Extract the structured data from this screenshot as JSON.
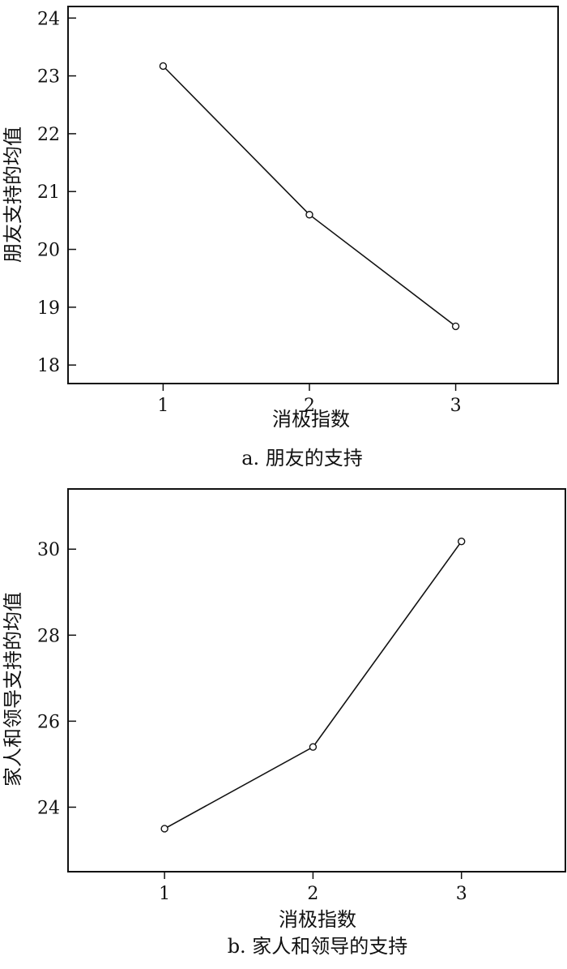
{
  "chart_data": [
    {
      "type": "line",
      "x": [
        1,
        2,
        3
      ],
      "series": [
        {
          "values": [
            23.17,
            20.6,
            18.67
          ]
        }
      ],
      "xlabel": "消极指数",
      "ylabel": "朋友支持的均值",
      "caption": "a. 朋友的支持",
      "xticks": [
        "1",
        "2",
        "3"
      ],
      "yticks": [
        "18",
        "19",
        "20",
        "21",
        "22",
        "23",
        "24"
      ],
      "xlim": [
        0.35,
        3.7
      ],
      "ylim": [
        17.68,
        24.2
      ],
      "grid": false
    },
    {
      "type": "line",
      "x": [
        1,
        2,
        3
      ],
      "series": [
        {
          "values": [
            23.5,
            25.4,
            30.18
          ]
        }
      ],
      "xlabel": "消极指数",
      "ylabel": "家人和领导支持的均值",
      "caption": "b. 家人和领导的支持",
      "xticks": [
        "1",
        "2",
        "3"
      ],
      "yticks": [
        "24",
        "26",
        "28",
        "30"
      ],
      "xlim": [
        0.35,
        3.7
      ],
      "ylim": [
        22.5,
        31.4
      ],
      "grid": false
    }
  ]
}
